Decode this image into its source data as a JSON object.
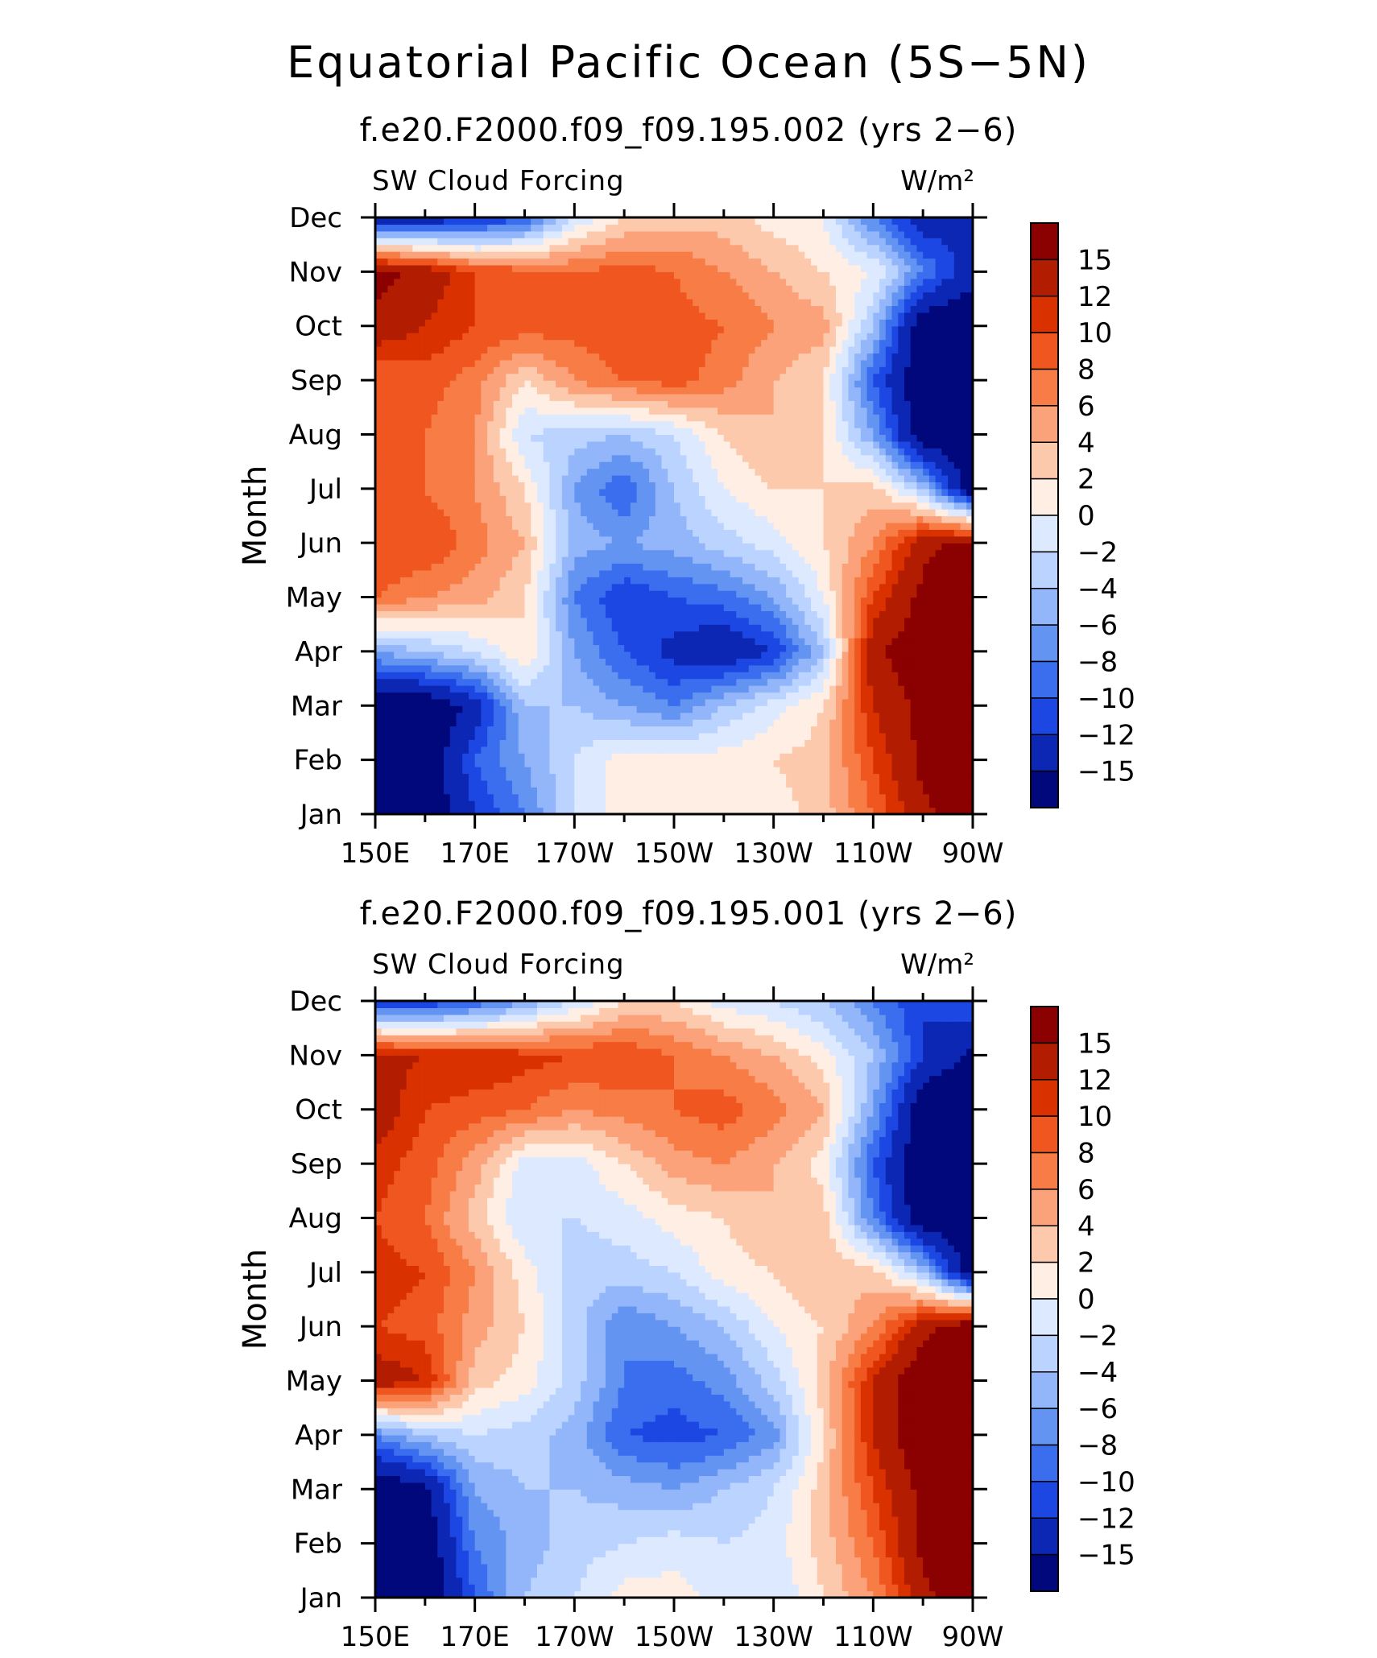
{
  "main_title": "Equatorial Pacific Ocean (5S−5N)",
  "colorbar": {
    "levels": [
      "15",
      "12",
      "10",
      "8",
      "6",
      "4",
      "2",
      "0",
      "−2",
      "−4",
      "−6",
      "−8",
      "−10",
      "−12",
      "−15"
    ],
    "colors": [
      "#8B0000",
      "#B21C00",
      "#DA3100",
      "#F0561F",
      "#F77C45",
      "#FBA27A",
      "#FDC9AC",
      "#FFEEE3",
      "#DDE9FF",
      "#BBD3FF",
      "#93B6FA",
      "#6494F2",
      "#3A6EEE",
      "#1C47E3",
      "#0D27B5",
      "#00087B"
    ]
  },
  "chart_data": [
    {
      "type": "heatmap",
      "title": "f.e20.F2000.f09_f09.195.002 (yrs 2−6)",
      "left_string": "SW Cloud Forcing",
      "units": "W/m²",
      "ylabel": "Month",
      "x": [
        "150E",
        "160E",
        "170E",
        "180",
        "170W",
        "160W",
        "150W",
        "140W",
        "130W",
        "120W",
        "110W",
        "100W",
        "90W"
      ],
      "x_tick_labels": [
        "150E",
        "170E",
        "170W",
        "150W",
        "130W",
        "110W",
        "90W"
      ],
      "y": [
        "Jan",
        "Feb",
        "Mar",
        "Apr",
        "May",
        "Jun",
        "Jul",
        "Aug",
        "Sep",
        "Oct",
        "Nov",
        "Dec"
      ],
      "values": [
        [
          -18,
          -18,
          -12,
          -8,
          -2,
          1,
          2,
          2,
          1,
          3,
          8,
          14,
          18
        ],
        [
          -18,
          -18,
          -10,
          -6,
          -2,
          1,
          1,
          1,
          2,
          3,
          10,
          16,
          18
        ],
        [
          -18,
          -18,
          -14,
          -4,
          -4,
          -6,
          -8,
          -4,
          -1,
          2,
          12,
          16,
          18
        ],
        [
          -6,
          -4,
          -2,
          2,
          -6,
          -10,
          -13,
          -15,
          -12,
          -4,
          14,
          18,
          18
        ],
        [
          8,
          6,
          5,
          2,
          -8,
          -12,
          -10,
          -9,
          -6,
          0,
          10,
          16,
          18
        ],
        [
          10,
          10,
          7,
          4,
          -5,
          -6,
          -5,
          -3,
          -1,
          2,
          6,
          14,
          16
        ],
        [
          8,
          8,
          6,
          2,
          -6,
          -10,
          -4,
          0,
          2,
          2,
          3,
          -4,
          -18
        ],
        [
          8,
          8,
          6,
          -2,
          -3,
          -4,
          -2,
          2,
          4,
          2,
          -6,
          -18,
          -18
        ],
        [
          8,
          9,
          7,
          2,
          6,
          8,
          9,
          7,
          4,
          2,
          -10,
          -18,
          -18
        ],
        [
          14,
          12,
          10,
          9,
          9,
          10,
          9,
          8,
          6,
          5,
          -4,
          -18,
          -18
        ],
        [
          16,
          14,
          10,
          9,
          8,
          9,
          8,
          6,
          4,
          2,
          0,
          -8,
          -14
        ],
        [
          -14,
          -14,
          -13,
          -10,
          -2,
          2,
          3,
          3,
          1,
          0,
          -8,
          -14,
          -12
        ]
      ]
    },
    {
      "type": "heatmap",
      "title": "f.e20.F2000.f09_f09.195.001 (yrs 2−6)",
      "left_string": "SW Cloud Forcing",
      "units": "W/m²",
      "ylabel": "Month",
      "x": [
        "150E",
        "160E",
        "170E",
        "180",
        "170W",
        "160W",
        "150W",
        "140W",
        "130W",
        "120W",
        "110W",
        "100W",
        "90W"
      ],
      "x_tick_labels": [
        "150E",
        "170E",
        "170W",
        "150W",
        "130W",
        "110W",
        "90W"
      ],
      "y": [
        "Jan",
        "Feb",
        "Mar",
        "Apr",
        "May",
        "Jun",
        "Jul",
        "Aug",
        "Sep",
        "Oct",
        "Nov",
        "Dec"
      ],
      "values": [
        [
          -18,
          -18,
          -10,
          -4,
          -2,
          1,
          1,
          -1,
          -2,
          2,
          6,
          14,
          18
        ],
        [
          -18,
          -18,
          -8,
          -5,
          -3,
          -2,
          -1,
          -2,
          -1,
          3,
          8,
          16,
          18
        ],
        [
          -18,
          -16,
          -6,
          -4,
          -4,
          -5,
          -6,
          -4,
          -2,
          3,
          10,
          16,
          18
        ],
        [
          -8,
          -4,
          -2,
          -3,
          -5,
          -10,
          -11,
          -10,
          -7,
          2,
          12,
          18,
          18
        ],
        [
          14,
          12,
          3,
          1,
          -3,
          -8,
          -9,
          -7,
          -3,
          3,
          12,
          18,
          18
        ],
        [
          10,
          9,
          5,
          2,
          -3,
          -8,
          -6,
          -4,
          0,
          2,
          6,
          14,
          18
        ],
        [
          11,
          10,
          6,
          1,
          -3,
          -3,
          -2,
          1,
          2,
          4,
          3,
          -4,
          -18
        ],
        [
          10,
          8,
          3,
          -2,
          -2,
          -1,
          1,
          2,
          4,
          3,
          -8,
          -18,
          -18
        ],
        [
          11,
          9,
          5,
          -1,
          -1,
          2,
          5,
          6,
          4,
          1,
          -10,
          -18,
          -18
        ],
        [
          14,
          10,
          9,
          8,
          6,
          7,
          8,
          9,
          7,
          4,
          -6,
          -18,
          -18
        ],
        [
          13,
          12,
          12,
          11,
          10,
          10,
          8,
          6,
          4,
          1,
          -4,
          -12,
          -16
        ],
        [
          -12,
          -12,
          -10,
          -6,
          -2,
          2,
          2,
          -1,
          -2,
          -4,
          -8,
          -12,
          -10
        ]
      ]
    }
  ]
}
